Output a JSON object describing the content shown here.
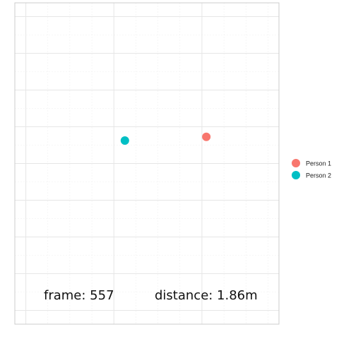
{
  "chart_data": {
    "type": "scatter",
    "title": "",
    "xlabel": "",
    "ylabel": "",
    "xlim": [
      0,
      12
    ],
    "ylim": [
      0,
      17.5
    ],
    "grid": true,
    "legend_position": "right",
    "series": [
      {
        "name": "Person 1",
        "color": "#F8766D",
        "x": 8.7,
        "y": 10.2
      },
      {
        "name": "Person 2",
        "color": "#00BFC4",
        "x": 5.0,
        "y": 10.0
      }
    ]
  },
  "annotations": {
    "frame": "frame: 557",
    "distance": "distance: 1.86m"
  },
  "colors": {
    "panel_border": "#cccccc",
    "grid_major": "#e6e6e6",
    "grid_minor": "#f0f0f0"
  }
}
